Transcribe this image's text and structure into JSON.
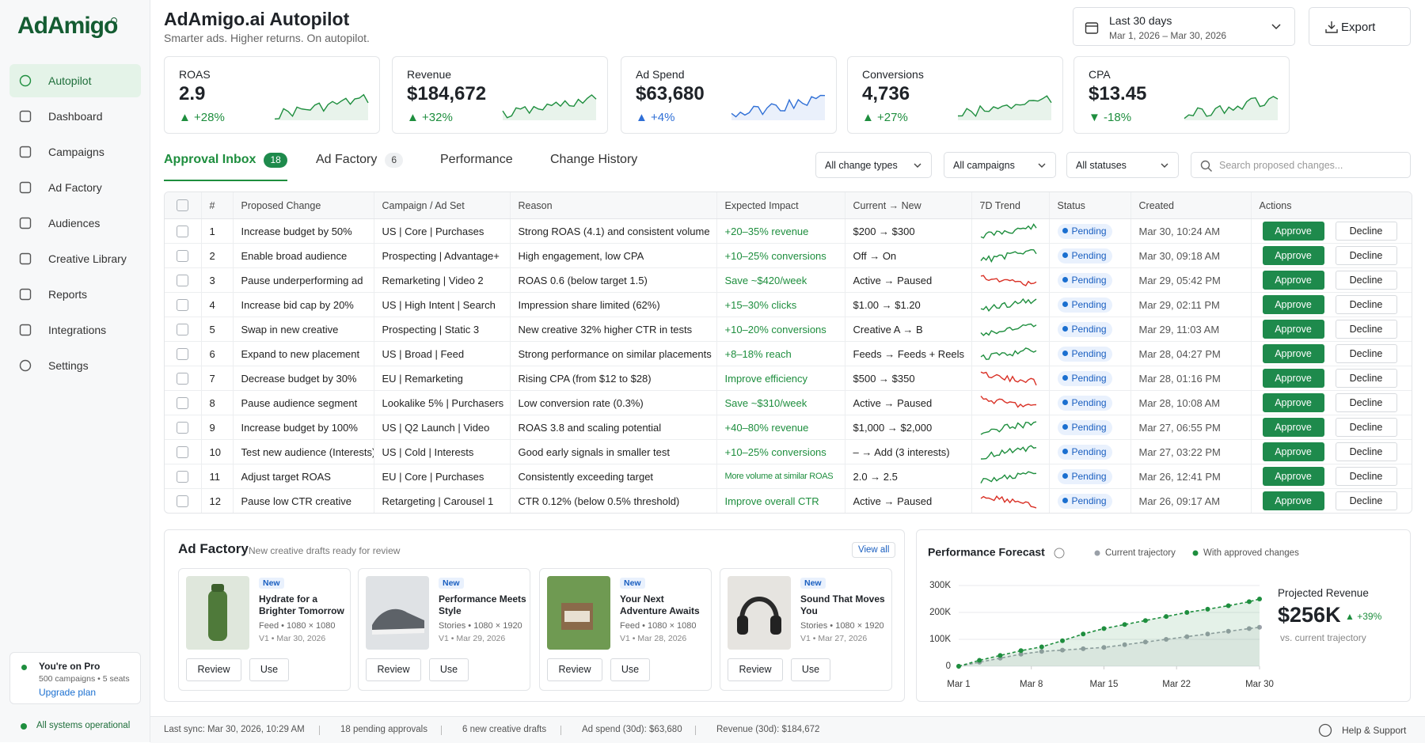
{
  "sidebar": {
    "logo": "AdAmigo",
    "nav": [
      "Autopilot",
      "Dashboard",
      "Campaigns",
      "Ad Factory",
      "Audiences",
      "Creative Library",
      "Reports",
      "Integrations",
      "Settings"
    ],
    "plan": {
      "title": "You're on Pro",
      "detail": "500 campaigns • 5 seats",
      "link": "Upgrade plan"
    },
    "status": "All systems operational"
  },
  "header": {
    "title": "AdAmigo.ai Autopilot",
    "subtitle": "Smarter ads. Higher returns. On autopilot.",
    "date_range": {
      "label": "Last 30 days",
      "dates": "Mar 1, 2026 – Mar 30, 2026"
    },
    "export": "Export"
  },
  "kpis": [
    {
      "label": "ROAS",
      "value": "2.9",
      "change": "▲ +28%",
      "color": "#1e8e3e"
    },
    {
      "label": "Revenue",
      "value": "$184,672",
      "change": "▲ +32%",
      "color": "#1e8e3e"
    },
    {
      "label": "Ad Spend",
      "value": "$63,680",
      "change": "▲ +4%",
      "color": "#2f6fd6"
    },
    {
      "label": "Conversions",
      "value": "4,736",
      "change": "▲ +27%",
      "color": "#1e8e3e"
    },
    {
      "label": "CPA",
      "value": "$13.45",
      "change": "▼ -18%",
      "color": "#1e8e3e"
    }
  ],
  "tabs": [
    {
      "label": "Approval Inbox",
      "count": "18"
    },
    {
      "label": "Ad Factory",
      "count": "6"
    },
    {
      "label": "Performance"
    },
    {
      "label": "Change History"
    }
  ],
  "filters": [
    "All change types",
    "All campaigns",
    "All statuses"
  ],
  "search_placeholder": "Search proposed changes...",
  "table": {
    "columns": [
      "#",
      "Proposed Change",
      "Campaign / Ad Set",
      "Reason",
      "Expected Impact",
      "Current → New",
      "7D Trend",
      "Status",
      "Created",
      "Actions"
    ],
    "rows": [
      {
        "num": "1",
        "change": "Increase budget by 50%",
        "campaign": "US | Core | Purchases",
        "reason": "Strong ROAS (4.1) and consistent volume",
        "impact": "+20–35% revenue",
        "current_new": "$200 → $300",
        "trend_color": "#1e8e3e",
        "status": "Pending",
        "created": "Mar 30, 10:24 AM",
        "approve": "Approve",
        "decline": "Decline"
      },
      {
        "num": "2",
        "change": "Enable broad audience",
        "campaign": "Prospecting | Advantage+",
        "reason": "High engagement, low CPA",
        "impact": "+10–25% conversions",
        "current_new": "Off → On",
        "trend_color": "#1e8e3e",
        "status": "Pending",
        "created": "Mar 30, 09:18 AM",
        "approve": "Approve",
        "decline": "Decline"
      },
      {
        "num": "3",
        "change": "Pause underperforming ad",
        "campaign": "Remarketing | Video 2",
        "reason": "ROAS 0.6 (below target 1.5)",
        "impact": "Save ~$420/week",
        "current_new": "Active → Paused",
        "trend_color": "#d93025",
        "status": "Pending",
        "created": "Mar 29, 05:42 PM",
        "approve": "Approve",
        "decline": "Decline"
      },
      {
        "num": "4",
        "change": "Increase bid cap by 20%",
        "campaign": "US | High Intent | Search",
        "reason": "Impression share limited (62%)",
        "impact": "+15–30% clicks",
        "current_new": "$1.00 → $1.20",
        "trend_color": "#1e8e3e",
        "status": "Pending",
        "created": "Mar 29, 02:11 PM",
        "approve": "Approve",
        "decline": "Decline"
      },
      {
        "num": "5",
        "change": "Swap in new creative",
        "campaign": "Prospecting | Static 3",
        "reason": "New creative 32% higher CTR in tests",
        "impact": "+10–20% conversions",
        "current_new": "Creative A → B",
        "trend_color": "#1e8e3e",
        "status": "Pending",
        "created": "Mar 29, 11:03 AM",
        "approve": "Approve",
        "decline": "Decline"
      },
      {
        "num": "6",
        "change": "Expand to new placement",
        "campaign": "US | Broad | Feed",
        "reason": "Strong performance on similar placements",
        "impact": "+8–18% reach",
        "current_new": "Feeds → Feeds + Reels",
        "trend_color": "#1e8e3e",
        "status": "Pending",
        "created": "Mar 28, 04:27 PM",
        "approve": "Approve",
        "decline": "Decline"
      },
      {
        "num": "7",
        "change": "Decrease budget by 30%",
        "campaign": "EU | Remarketing",
        "reason": "Rising CPA (from $12 to $28)",
        "impact": "Improve efficiency",
        "current_new": "$500 → $350",
        "trend_color": "#d93025",
        "status": "Pending",
        "created": "Mar 28, 01:16 PM",
        "approve": "Approve",
        "decline": "Decline"
      },
      {
        "num": "8",
        "change": "Pause audience segment",
        "campaign": "Lookalike 5% | Purchasers",
        "reason": "Low conversion rate (0.3%)",
        "impact": "Save ~$310/week",
        "current_new": "Active → Paused",
        "trend_color": "#d93025",
        "status": "Pending",
        "created": "Mar 28, 10:08 AM",
        "approve": "Approve",
        "decline": "Decline"
      },
      {
        "num": "9",
        "change": "Increase budget by 100%",
        "campaign": "US | Q2 Launch | Video",
        "reason": "ROAS 3.8 and scaling potential",
        "impact": "+40–80% revenue",
        "current_new": "$1,000 → $2,000",
        "trend_color": "#1e8e3e",
        "status": "Pending",
        "created": "Mar 27, 06:55 PM",
        "approve": "Approve",
        "decline": "Decline"
      },
      {
        "num": "10",
        "change": "Test new audience (Interests)",
        "campaign": "US | Cold | Interests",
        "reason": "Good early signals in smaller test",
        "impact": "+10–25% conversions",
        "current_new": "– → Add (3 interests)",
        "trend_color": "#1e8e3e",
        "status": "Pending",
        "created": "Mar 27, 03:22 PM",
        "approve": "Approve",
        "decline": "Decline"
      },
      {
        "num": "11",
        "change": "Adjust target ROAS",
        "campaign": "EU | Core | Purchases",
        "reason": "Consistently exceeding target",
        "impact": "More volume at similar ROAS",
        "current_new": "2.0 → 2.5",
        "trend_color": "#1e8e3e",
        "status": "Pending",
        "created": "Mar 26, 12:41 PM",
        "approve": "Approve",
        "decline": "Decline"
      },
      {
        "num": "12",
        "change": "Pause low CTR creative",
        "campaign": "Retargeting | Carousel 1",
        "reason": "CTR 0.12% (below 0.5% threshold)",
        "impact": "Improve overall CTR",
        "current_new": "Active → Paused",
        "trend_color": "#d93025",
        "status": "Pending",
        "created": "Mar 26, 09:17 AM",
        "approve": "Approve",
        "decline": "Decline"
      }
    ]
  },
  "ad_factory": {
    "title": "Ad Factory",
    "subtitle": "New creative drafts ready for review",
    "view_all": "View all",
    "cards": [
      {
        "badge": "New",
        "title": "Hydrate for a Brighter Tomorrow",
        "meta": "Feed • 1080 × 1080",
        "version": "V1 • Mar 30, 2026",
        "review": "Review",
        "use": "Use"
      },
      {
        "badge": "New",
        "title": "Performance Meets Style",
        "meta": "Stories • 1080 × 1920",
        "version": "V1 • Mar 29, 2026",
        "review": "Review",
        "use": "Use"
      },
      {
        "badge": "New",
        "title": "Your Next Adventure Awaits",
        "meta": "Feed • 1080 × 1080",
        "version": "V1 • Mar 28, 2026",
        "review": "Review",
        "use": "Use"
      },
      {
        "badge": "New",
        "title": "Sound That Moves You",
        "meta": "Stories • 1080 × 1920",
        "version": "V1 • Mar 27, 2026",
        "review": "Review",
        "use": "Use"
      }
    ]
  },
  "chart_data": {
    "type": "line",
    "title": "Performance Forecast",
    "x": [
      1,
      3,
      5,
      7,
      9,
      11,
      13,
      15,
      17,
      19,
      21,
      23,
      25,
      27,
      29,
      30
    ],
    "xlim": [
      1,
      30
    ],
    "xticks": [
      {
        "value": 1,
        "label": "Mar 1"
      },
      {
        "value": 8,
        "label": "Mar 8"
      },
      {
        "value": 15,
        "label": "Mar 15"
      },
      {
        "value": 22,
        "label": "Mar 22"
      },
      {
        "value": 30,
        "label": "Mar 30"
      }
    ],
    "ylim": [
      0,
      300000
    ],
    "yticks": [
      0,
      {
        "value": 100000,
        "label": "100K"
      },
      {
        "value": 200000,
        "label": "200K"
      },
      {
        "value": 300000,
        "label": "300K"
      }
    ],
    "grid": true,
    "series": [
      {
        "name": "Current trajectory",
        "color": "#9aa0a8",
        "values": [
          0,
          15000,
          30000,
          45000,
          55000,
          60000,
          65000,
          70000,
          80000,
          90000,
          100000,
          110000,
          120000,
          130000,
          140000,
          145000
        ]
      },
      {
        "name": "With approved changes",
        "color": "#1e8e3e",
        "values": [
          0,
          22000,
          40000,
          58000,
          72000,
          95000,
          120000,
          140000,
          155000,
          170000,
          185000,
          200000,
          212000,
          225000,
          240000,
          250000
        ]
      }
    ]
  },
  "forecast_summary": {
    "label": "Projected Revenue",
    "value": "$256K",
    "change": "▲ +39%",
    "note": "vs. current trajectory"
  },
  "footer": {
    "items": [
      "Last sync: Mar 30, 2026, 10:29 AM",
      "18 pending approvals",
      "6 new creative drafts",
      "Ad spend (30d): $63,680",
      "Revenue (30d): $184,672"
    ],
    "help": "Help & Support"
  }
}
